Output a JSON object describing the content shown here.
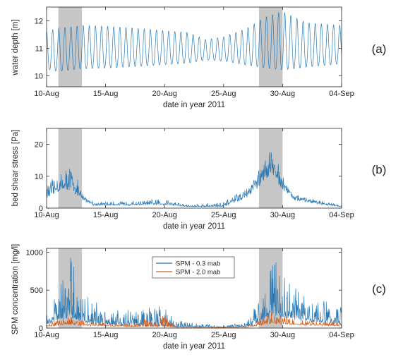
{
  "chart_data": [
    {
      "type": "line",
      "panel_label": "(a)",
      "xlabel": "date in year 2011",
      "ylabel": "water depth [m]",
      "x_range": [
        "2011-08-10",
        "2011-09-04"
      ],
      "x_ticks": [
        "10-Aug",
        "15-Aug",
        "20-Aug",
        "25-Aug",
        "30-Aug",
        "04-Sep"
      ],
      "ylim": [
        9.6,
        12.5
      ],
      "y_ticks": [
        10,
        11,
        12
      ],
      "grid": false,
      "shaded_periods": [
        [
          "2011-08-11",
          "2011-08-13"
        ],
        [
          "2011-08-28",
          "2011-08-30"
        ]
      ],
      "series": [
        {
          "color": "#2a7ab5",
          "description": "semi-diurnal tidal water depth",
          "envelope_dates": [
            "2011-08-10",
            "2011-08-11",
            "2011-08-13",
            "2011-08-16",
            "2011-08-19",
            "2011-08-22",
            "2011-08-23.5",
            "2011-08-25",
            "2011-08-27",
            "2011-08-28.5",
            "2011-08-30",
            "2011-09-01",
            "2011-09-04"
          ],
          "high_water": [
            11.6,
            11.7,
            11.8,
            11.75,
            11.65,
            11.55,
            11.3,
            11.4,
            11.7,
            12.1,
            12.3,
            11.9,
            11.8
          ],
          "low_water": [
            10.1,
            10.0,
            10.1,
            10.15,
            10.25,
            10.35,
            10.5,
            10.45,
            10.25,
            10.1,
            10.0,
            10.15,
            10.3
          ]
        }
      ]
    },
    {
      "type": "line",
      "panel_label": "(b)",
      "xlabel": "date in year 2011",
      "ylabel": "bed shear stress [Pa]",
      "x_range": [
        "2011-08-10",
        "2011-09-04"
      ],
      "x_ticks": [
        "10-Aug",
        "15-Aug",
        "20-Aug",
        "25-Aug",
        "30-Aug",
        "04-Sep"
      ],
      "ylim": [
        0,
        25
      ],
      "y_ticks": [
        0,
        10,
        20
      ],
      "grid": false,
      "shaded_periods": [
        [
          "2011-08-11",
          "2011-08-13"
        ],
        [
          "2011-08-28",
          "2011-08-30"
        ]
      ],
      "series": [
        {
          "color": "#2a7ab5",
          "description": "bed shear stress",
          "envelope_dates": [
            "2011-08-10",
            "2011-08-11",
            "2011-08-12",
            "2011-08-13",
            "2011-08-14",
            "2011-08-17",
            "2011-08-20",
            "2011-08-22",
            "2011-08-25",
            "2011-08-27",
            "2011-08-28",
            "2011-08-29",
            "2011-08-30",
            "2011-08-31",
            "2011-09-02",
            "2011-09-04"
          ],
          "base": [
            4,
            6,
            7,
            3,
            1,
            1,
            1.2,
            0.5,
            0.5,
            4,
            8,
            13,
            7,
            3,
            1.5,
            0.5
          ],
          "peak": [
            7,
            10,
            14,
            5,
            2,
            2,
            3,
            1,
            2,
            6,
            11,
            18,
            10,
            4,
            2.5,
            0.8
          ]
        }
      ]
    },
    {
      "type": "line",
      "panel_label": "(c)",
      "xlabel": "date in year 2011",
      "ylabel": "SPM concentration [mg/l]",
      "x_range": [
        "2011-08-10",
        "2011-09-04"
      ],
      "x_ticks": [
        "10-Aug",
        "15-Aug",
        "20-Aug",
        "25-Aug",
        "30-Aug",
        "04-Sep"
      ],
      "ylim": [
        0,
        1050
      ],
      "y_ticks": [
        0,
        500,
        1000
      ],
      "grid": false,
      "legend_position": "top-center",
      "shaded_periods": [
        [
          "2011-08-11",
          "2011-08-13"
        ],
        [
          "2011-08-28",
          "2011-08-30"
        ]
      ],
      "series": [
        {
          "name": "SPM - 0.3 mab",
          "color": "#2a7ab5",
          "envelope_dates": [
            "2011-08-10",
            "2011-08-11",
            "2011-08-12",
            "2011-08-13",
            "2011-08-15",
            "2011-08-17",
            "2011-08-20",
            "2011-08-21",
            "2011-08-25",
            "2011-08-27",
            "2011-08-28",
            "2011-08-29",
            "2011-08-30",
            "2011-09-01",
            "2011-09-04"
          ],
          "base": [
            50,
            100,
            150,
            80,
            50,
            40,
            30,
            15,
            10,
            20,
            80,
            200,
            150,
            100,
            60
          ],
          "peak": [
            200,
            500,
            1000,
            450,
            300,
            250,
            300,
            100,
            30,
            80,
            400,
            950,
            700,
            400,
            300
          ]
        },
        {
          "name": "SPM - 2.0 mab",
          "color": "#d35f1f",
          "envelope_dates": [
            "2011-08-10",
            "2011-08-11",
            "2011-08-12",
            "2011-08-13",
            "2011-08-15",
            "2011-08-17",
            "2011-08-20",
            "2011-08-21",
            "2011-08-25",
            "2011-08-27",
            "2011-08-28",
            "2011-08-29",
            "2011-08-30",
            "2011-09-01",
            "2011-09-04"
          ],
          "base": [
            20,
            40,
            50,
            35,
            25,
            20,
            20,
            10,
            5,
            10,
            40,
            70,
            55,
            40,
            30
          ],
          "peak": [
            60,
            120,
            170,
            100,
            80,
            60,
            200,
            20,
            10,
            30,
            120,
            220,
            170,
            100,
            80
          ]
        }
      ]
    }
  ]
}
